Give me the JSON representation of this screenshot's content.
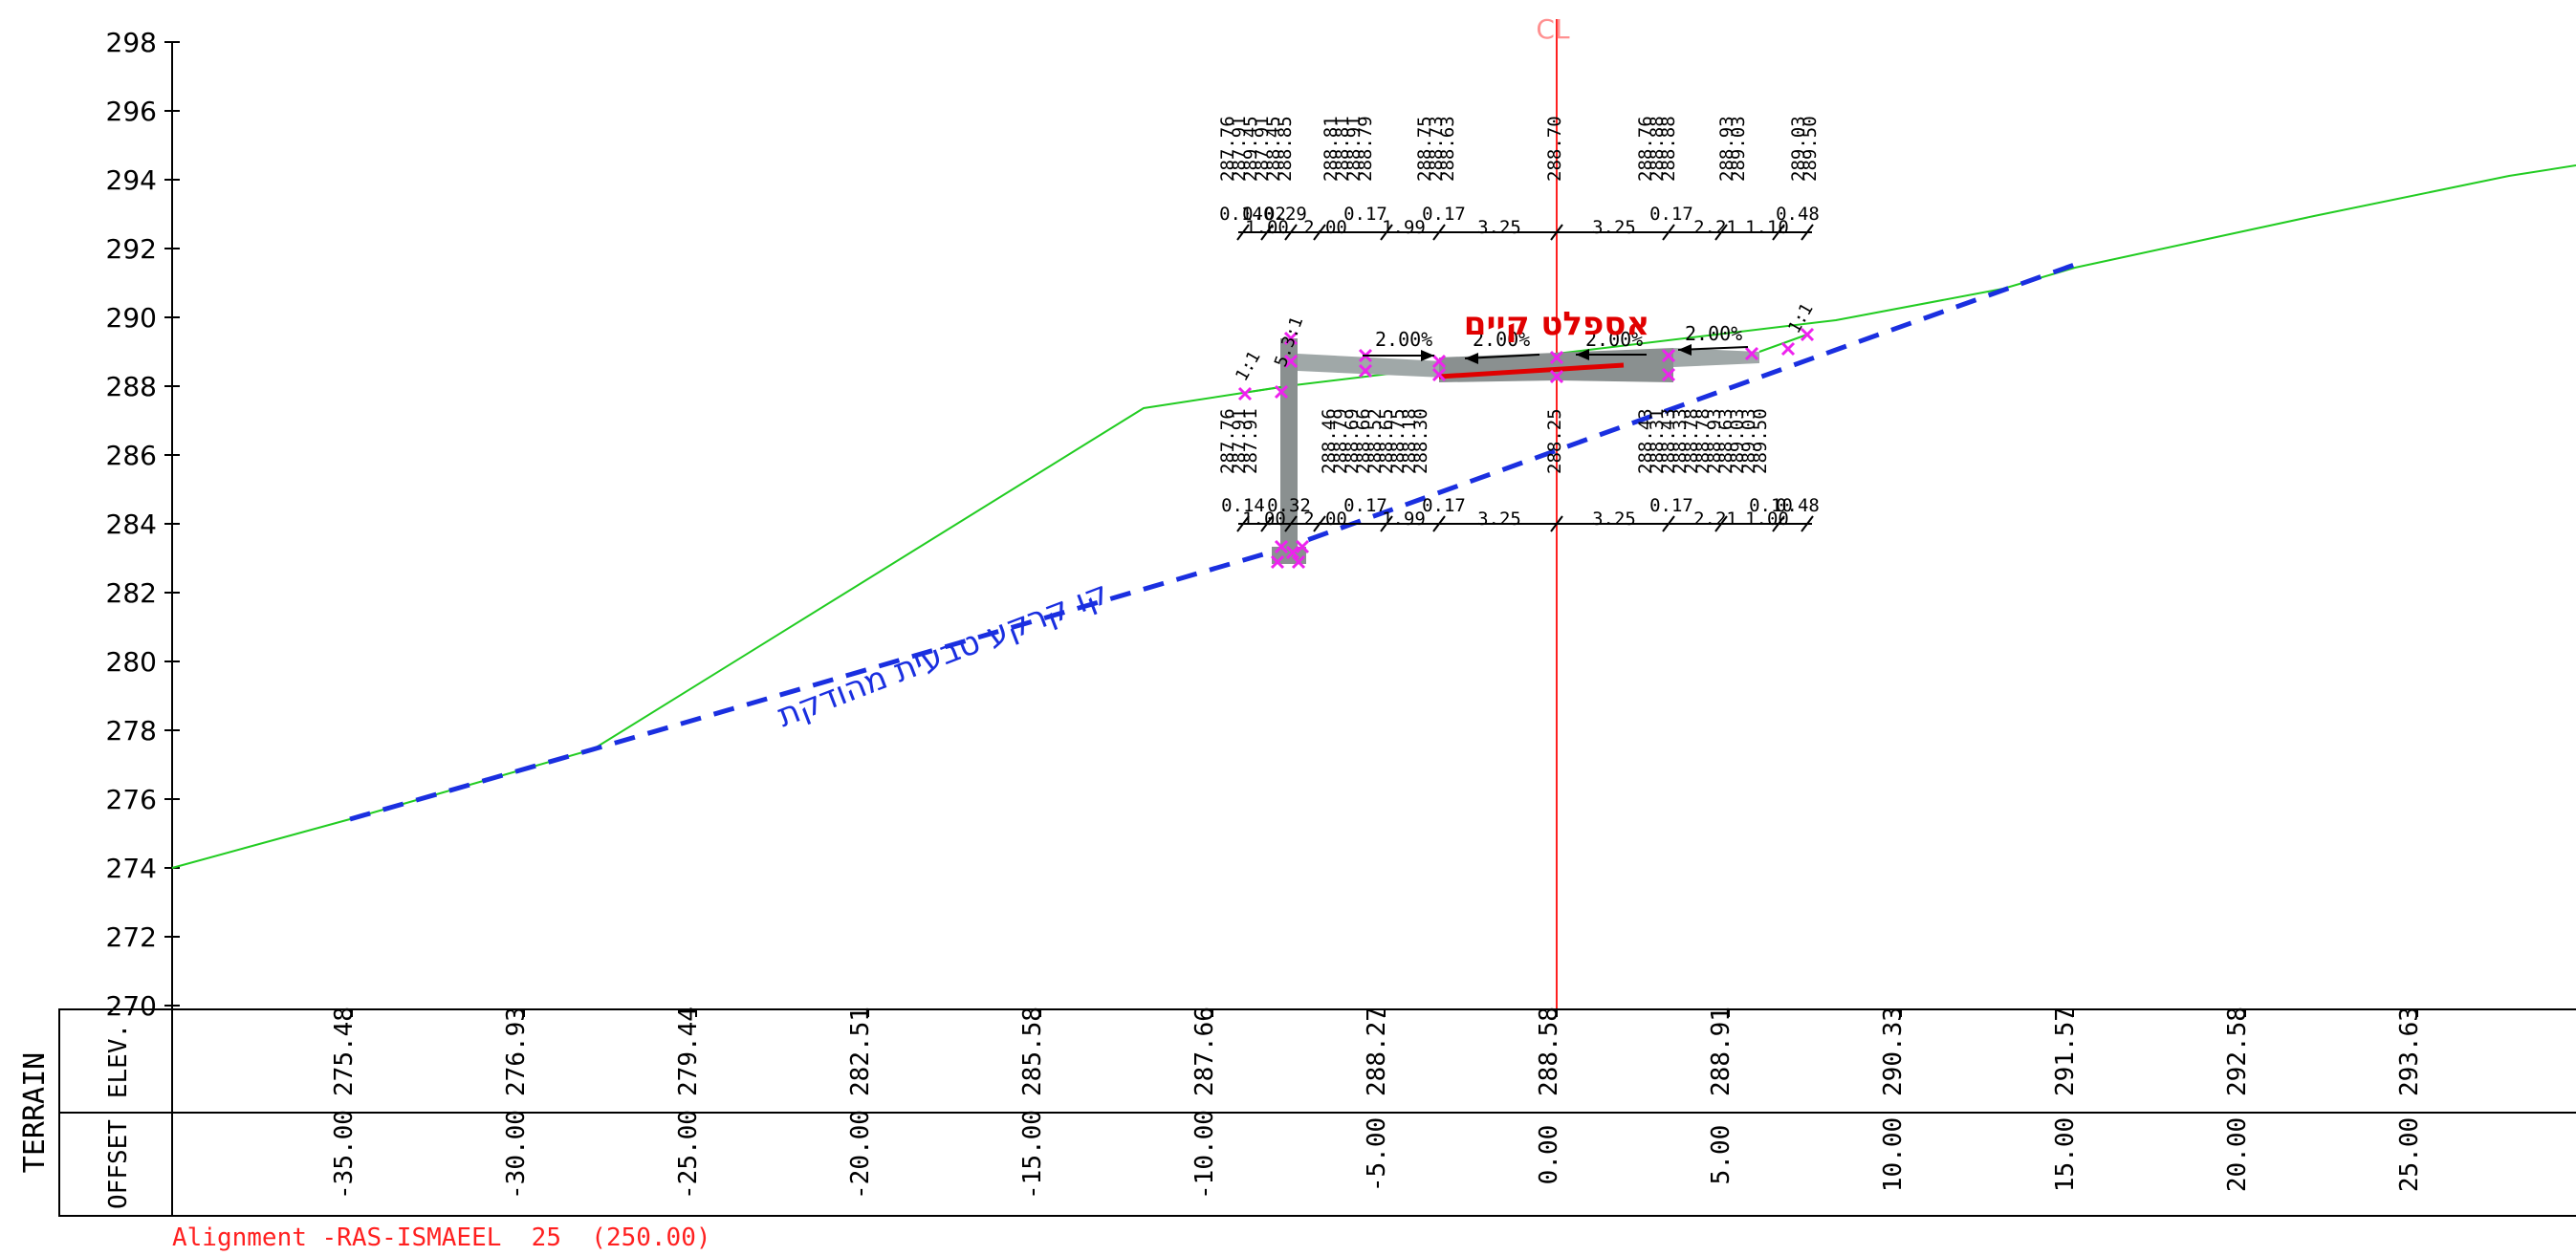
{
  "drawing": {
    "centerline_label": "CL",
    "existing_asphalt_label": "אספלט קיים",
    "natural_ground_label": "קו קרקע טבעית מהודקת",
    "alignment_caption": "Alignment -RAS-ISMAEEL  25  (250.00)",
    "colors": {
      "terrain": "#22cc22",
      "natural_ground": "#1a2fe0",
      "centerline": "#ff2020",
      "asphalt_label": "#e00000",
      "caption": "#ff2020",
      "points": "#ee22ee",
      "structure": "#8a9090",
      "text": "#000000"
    }
  },
  "y_axis": {
    "ticks": [
      "298",
      "296",
      "294",
      "292",
      "290",
      "288",
      "286",
      "284",
      "282",
      "280",
      "278",
      "276",
      "274",
      "272",
      "270"
    ]
  },
  "band": {
    "title": "TERRAIN",
    "row1_label": "ELEV.",
    "row2_label": "OFFSET",
    "elevations": [
      "275.48",
      "276.93",
      "279.44",
      "282.51",
      "285.58",
      "287.66",
      "288.27",
      "288.58",
      "288.91",
      "290.33",
      "291.57",
      "292.58",
      "293.63"
    ],
    "offsets": [
      "-35.00",
      "-30.00",
      "-25.00",
      "-20.00",
      "-15.00",
      "-10.00",
      "-5.00",
      "0.00",
      "5.00",
      "10.00",
      "15.00",
      "20.00",
      "25.00"
    ]
  },
  "section": {
    "top_elev_groups": [
      [
        "287.76",
        "287.91",
        "289.45",
        "287.91",
        "288.45",
        "288.85"
      ],
      [
        "288.81",
        "288.81",
        "288.91",
        "288.79"
      ],
      [
        "288.75",
        "288.73",
        "288.63"
      ],
      [
        "288.70"
      ],
      [
        "288.76",
        "288.88",
        "288.88"
      ],
      [
        "288.93",
        "289.03"
      ],
      [
        "289.03",
        "289.50"
      ]
    ],
    "top_dims": [
      "0.14",
      "0.02",
      "0.29",
      "1.00",
      "2.00",
      "0.17",
      "1.99",
      "0.17",
      "3.25",
      "3.25",
      "0.17",
      "2.21",
      "1.10",
      "0.48"
    ],
    "bottom_elev_groups": [
      [
        "287.76",
        "287.91",
        "287.91"
      ],
      [
        "288.46",
        "288.79",
        "288.69",
        "288.66",
        "288.52",
        "288.65",
        "288.75",
        "288.18",
        "288.30"
      ],
      [
        "288.25"
      ],
      [
        "288.43",
        "288.31",
        "288.43",
        "288.33",
        "288.78",
        "288.78",
        "288.93",
        "288.63",
        "289.03",
        "289.03",
        "289.50"
      ]
    ],
    "bottom_dims": [
      "0.14",
      "0.32",
      "1.00",
      "2.00",
      "0.17",
      "1.99",
      "0.17",
      "3.25",
      "3.25",
      "0.17",
      "2.21",
      "0.10",
      "0.48",
      "1.00"
    ],
    "slopes": [
      "2.00%",
      "2.00%",
      "2.00%",
      "2.00%"
    ],
    "side_slope_left": "1:1",
    "side_slope_right": "1:1",
    "wall_slope": "5.3:1"
  }
}
